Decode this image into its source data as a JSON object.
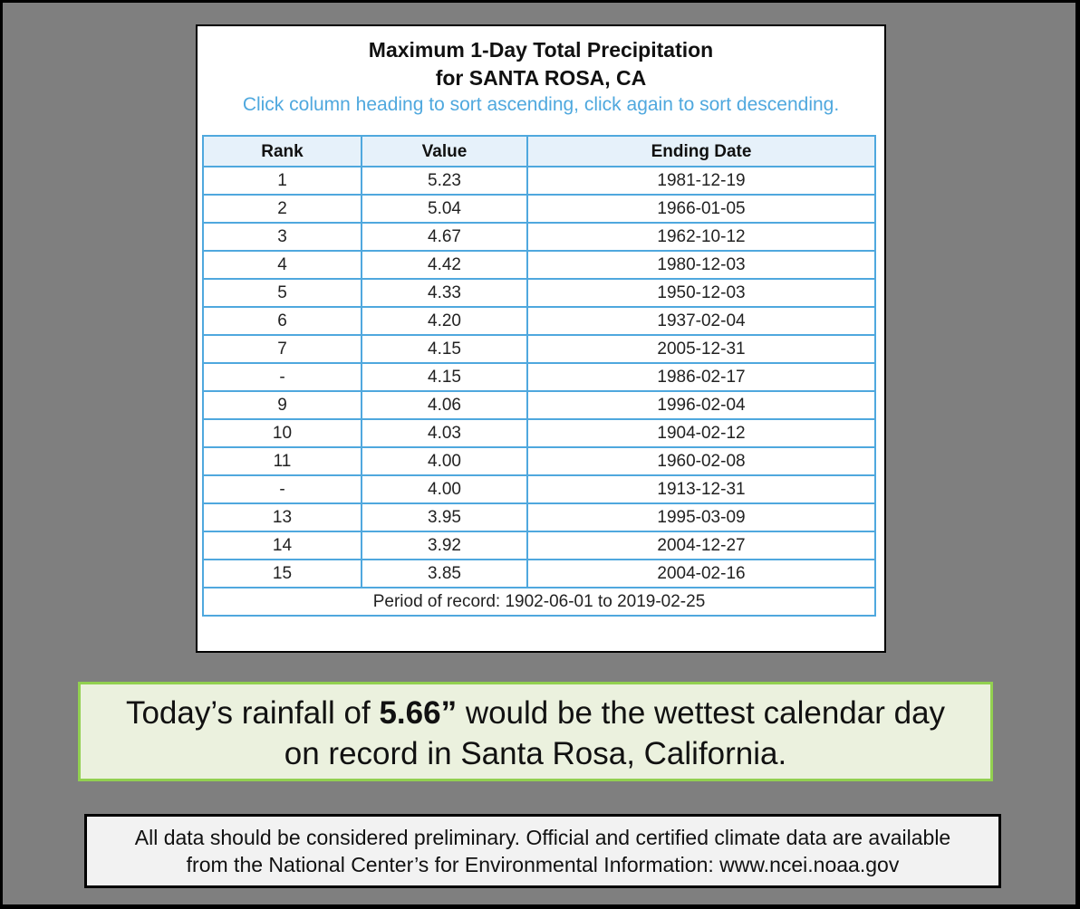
{
  "title_line1": "Maximum 1-Day Total Precipitation",
  "title_line2": "for SANTA ROSA, CA",
  "hint": "Click column heading to sort ascending, click again to sort descending.",
  "headers": {
    "rank": "Rank",
    "value": "Value",
    "date": "Ending Date"
  },
  "rows": [
    {
      "rank": "1",
      "value": "5.23",
      "date": "1981-12-19"
    },
    {
      "rank": "2",
      "value": "5.04",
      "date": "1966-01-05"
    },
    {
      "rank": "3",
      "value": "4.67",
      "date": "1962-10-12"
    },
    {
      "rank": "4",
      "value": "4.42",
      "date": "1980-12-03"
    },
    {
      "rank": "5",
      "value": "4.33",
      "date": "1950-12-03"
    },
    {
      "rank": "6",
      "value": "4.20",
      "date": "1937-02-04"
    },
    {
      "rank": "7",
      "value": "4.15",
      "date": "2005-12-31"
    },
    {
      "rank": "-",
      "value": "4.15",
      "date": "1986-02-17"
    },
    {
      "rank": "9",
      "value": "4.06",
      "date": "1996-02-04"
    },
    {
      "rank": "10",
      "value": "4.03",
      "date": "1904-02-12"
    },
    {
      "rank": "11",
      "value": "4.00",
      "date": "1960-02-08"
    },
    {
      "rank": "-",
      "value": "4.00",
      "date": "1913-12-31"
    },
    {
      "rank": "13",
      "value": "3.95",
      "date": "1995-03-09"
    },
    {
      "rank": "14",
      "value": "3.92",
      "date": "2004-12-27"
    },
    {
      "rank": "15",
      "value": "3.85",
      "date": "2004-02-16"
    }
  ],
  "period": "Period of record: 1902-06-01 to 2019-02-25",
  "banner": {
    "pre": "Today’s rainfall of ",
    "bold": "5.66”",
    "post": " would be the wettest calendar day",
    "line2": "on record in Santa Rosa, California."
  },
  "notice": {
    "line1": "All data should be considered preliminary. Official and certified climate data are available",
    "line2": "from the National Center’s for Environmental Information:  www.ncei.noaa.gov"
  },
  "colors": {
    "accent": "#4fa8de",
    "banner_border": "#92d050",
    "banner_bg": "#ebf1de",
    "frame_bg": "#7f7f7f"
  }
}
